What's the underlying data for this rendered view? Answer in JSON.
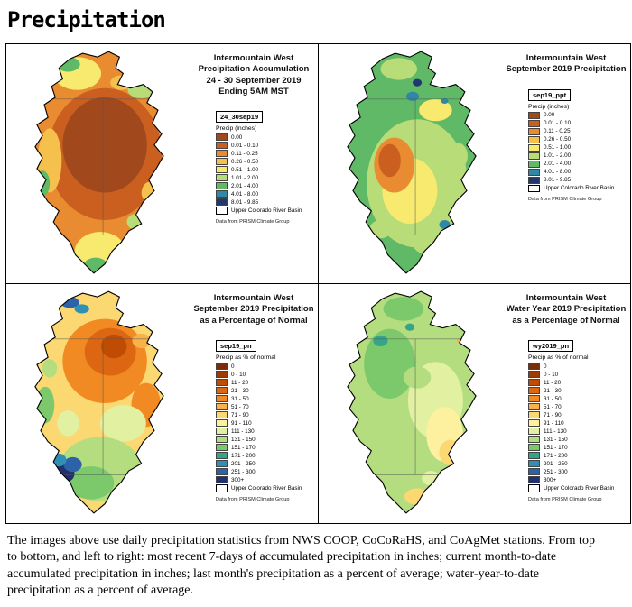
{
  "page_title": "Precipitation",
  "caption": "The images above use daily precipitation statistics from NWS COOP, CoCoRaHS, and CoAgMet stations. From top to bottom, and left to right: most recent 7-days of accumulated precipitation in inches; current month-to-date accumulated precipitation in inches; last month's precipitation as a percent of average; water-year-to-date precipitation as a percent of average.",
  "maps": [
    {
      "id": "accum_7day",
      "title_lines": [
        "Intermountain West",
        "Precipitation Accumulation",
        "24 - 30 September 2019",
        "Ending 5AM MST"
      ],
      "legend_name": "24_30sep19",
      "legend_units": "Precip (inches)",
      "legend_items": [
        {
          "label": "0.00",
          "color": "#a1491d"
        },
        {
          "label": "0.01 - 0.10",
          "color": "#ca5f20"
        },
        {
          "label": "0.11 - 0.25",
          "color": "#e98b31"
        },
        {
          "label": "0.26 - 0.50",
          "color": "#f5c04c"
        },
        {
          "label": "0.51 - 1.00",
          "color": "#f7ea6e"
        },
        {
          "label": "1.01 - 2.00",
          "color": "#b8dc77"
        },
        {
          "label": "2.01 - 4.00",
          "color": "#5fb966"
        },
        {
          "label": "4.01 - 8.00",
          "color": "#3188a6"
        },
        {
          "label": "8.01 - 9.85",
          "color": "#20386e"
        }
      ],
      "basin_label": "Upper Colorado River Basin",
      "attribution": "Data from PRISM Climate Group"
    },
    {
      "id": "sep_ppt",
      "title_lines": [
        "Intermountain West",
        "September 2019 Precipitation"
      ],
      "legend_name": "sep19_ppt",
      "legend_units": "Precip (inches)",
      "legend_items": [
        {
          "label": "0.00",
          "color": "#a1491d"
        },
        {
          "label": "0.01 - 0.10",
          "color": "#ca5f20"
        },
        {
          "label": "0.11 - 0.25",
          "color": "#e98b31"
        },
        {
          "label": "0.26 - 0.50",
          "color": "#f5c04c"
        },
        {
          "label": "0.51 - 1.00",
          "color": "#f7ea6e"
        },
        {
          "label": "1.01 - 2.00",
          "color": "#b8dc77"
        },
        {
          "label": "2.01 - 4.00",
          "color": "#5fb966"
        },
        {
          "label": "4.01 - 8.00",
          "color": "#3188a6"
        },
        {
          "label": "8.01 - 9.85",
          "color": "#20386e"
        }
      ],
      "basin_label": "Upper Colorado River Basin",
      "attribution": "Data from PRISM Climate Group"
    },
    {
      "id": "sep_pn",
      "title_lines": [
        "Intermountain West",
        "September 2019 Precipitation",
        "as a Percentage of Normal"
      ],
      "legend_name": "sep19_pn",
      "legend_units": "Precip as % of normal",
      "legend_items": [
        {
          "label": "0",
          "color": "#7a2d06"
        },
        {
          "label": "0 - 10",
          "color": "#9e3a03"
        },
        {
          "label": "11 - 20",
          "color": "#bf4c02"
        },
        {
          "label": "21 - 30",
          "color": "#dd6613"
        },
        {
          "label": "31 - 50",
          "color": "#f18a22"
        },
        {
          "label": "51 - 70",
          "color": "#f9b24a"
        },
        {
          "label": "71 - 90",
          "color": "#fbd872"
        },
        {
          "label": "91 - 110",
          "color": "#fdf1a0"
        },
        {
          "label": "111 - 130",
          "color": "#e2f0a2"
        },
        {
          "label": "131 - 150",
          "color": "#b4dd7f"
        },
        {
          "label": "151 - 170",
          "color": "#7cc96c"
        },
        {
          "label": "171 - 200",
          "color": "#35a58a"
        },
        {
          "label": "201 - 250",
          "color": "#2f8fb4"
        },
        {
          "label": "251 - 300",
          "color": "#2b62a8"
        },
        {
          "label": "300+",
          "color": "#20316e"
        }
      ],
      "basin_label": "Upper Colorado River Basin",
      "attribution": "Data from PRISM Climate Group"
    },
    {
      "id": "wy_pn",
      "title_lines": [
        "Intermountain West",
        "Water Year 2019 Precipitation",
        "as a Percentage of Normal"
      ],
      "legend_name": "wy2019_pn",
      "legend_units": "Precip as % of normal",
      "legend_items": [
        {
          "label": "0",
          "color": "#7a2d06"
        },
        {
          "label": "0 - 10",
          "color": "#9e3a03"
        },
        {
          "label": "11 - 20",
          "color": "#bf4c02"
        },
        {
          "label": "21 - 30",
          "color": "#dd6613"
        },
        {
          "label": "31 - 50",
          "color": "#f18a22"
        },
        {
          "label": "51 - 70",
          "color": "#f9b24a"
        },
        {
          "label": "71 - 90",
          "color": "#fbd872"
        },
        {
          "label": "91 - 110",
          "color": "#fdf1a0"
        },
        {
          "label": "111 - 130",
          "color": "#e2f0a2"
        },
        {
          "label": "131 - 150",
          "color": "#b4dd7f"
        },
        {
          "label": "151 - 170",
          "color": "#7cc96c"
        },
        {
          "label": "171 - 200",
          "color": "#35a58a"
        },
        {
          "label": "201 - 250",
          "color": "#2f8fb4"
        },
        {
          "label": "251 - 300",
          "color": "#2b62a8"
        },
        {
          "label": "300+",
          "color": "#20316e"
        }
      ],
      "basin_label": "Upper Colorado River Basin",
      "attribution": "Data from PRISM Climate Group"
    }
  ]
}
